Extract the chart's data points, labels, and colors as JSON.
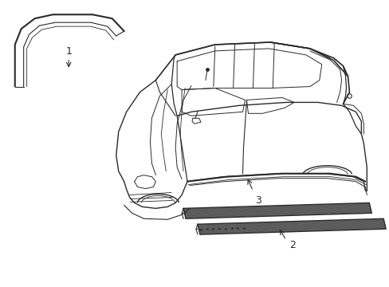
{
  "background_color": "#ffffff",
  "line_color": "#2a2a2a",
  "figure_width": 4.89,
  "figure_height": 3.6,
  "dpi": 100,
  "label_1": "1",
  "label_2": "2",
  "label_3": "3",
  "label_fontsize": 9
}
